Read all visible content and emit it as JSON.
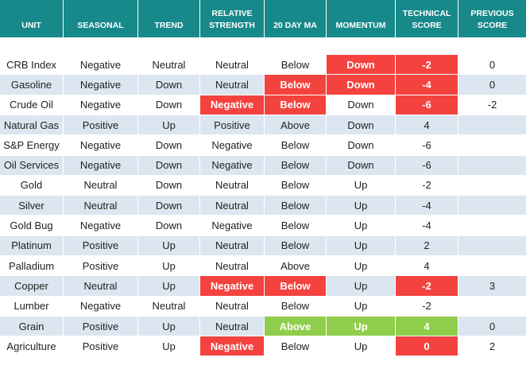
{
  "table": {
    "header": [
      "UNIT",
      "SEASONAL",
      "TREND",
      "RELATIVE STRENGTH",
      "20 DAY MA",
      "MOMENTUM",
      "TECHNICAL SCORE",
      "PREVIOUS SCORE"
    ],
    "rows": [
      [
        "CRB Index",
        "Negative",
        "Neutral",
        "Neutral",
        "Below",
        "Down",
        -2,
        0
      ],
      [
        "Gasoline",
        "Negative",
        "Down",
        "Neutral",
        "Below",
        "Down",
        -4,
        0
      ],
      [
        "Crude Oil",
        "Negative",
        "Down",
        "Negative",
        "Below",
        "Down",
        -6,
        -2
      ],
      [
        "Natural Gas",
        "Positive",
        "Up",
        "Positive",
        "Above",
        "Down",
        4,
        null
      ],
      [
        "S&P Energy",
        "Negative",
        "Down",
        "Negative",
        "Below",
        "Down",
        -6,
        null
      ],
      [
        "Oil Services",
        "Negative",
        "Down",
        "Negative",
        "Below",
        "Down",
        -6,
        null
      ],
      [
        "Gold",
        "Neutral",
        "Down",
        "Neutral",
        "Below",
        "Up",
        -2,
        null
      ],
      [
        "Silver",
        "Neutral",
        "Down",
        "Neutral",
        "Below",
        "Up",
        -4,
        null
      ],
      [
        "Gold Bug",
        "Negative",
        "Down",
        "Negative",
        "Below",
        "Up",
        -4,
        null
      ],
      [
        "Platinum",
        "Positive",
        "Up",
        "Neutral",
        "Below",
        "Up",
        2,
        null
      ],
      [
        "Palladium",
        "Positive",
        "Up",
        "Neutral",
        "Above",
        "Up",
        4,
        null
      ],
      [
        "Copper",
        "Neutral",
        "Up",
        "Negative",
        "Below",
        "Up",
        -2,
        3
      ],
      [
        "Lumber",
        "Negative",
        "Neutral",
        "Neutral",
        "Below",
        "Up",
        -2,
        null
      ],
      [
        "Grain",
        "Positive",
        "Up",
        "Neutral",
        "Above",
        "Up",
        4,
        0
      ],
      [
        "Agriculture",
        "Positive",
        "Up",
        "Negative",
        "Below",
        "Up",
        0,
        2
      ]
    ]
  }
}
